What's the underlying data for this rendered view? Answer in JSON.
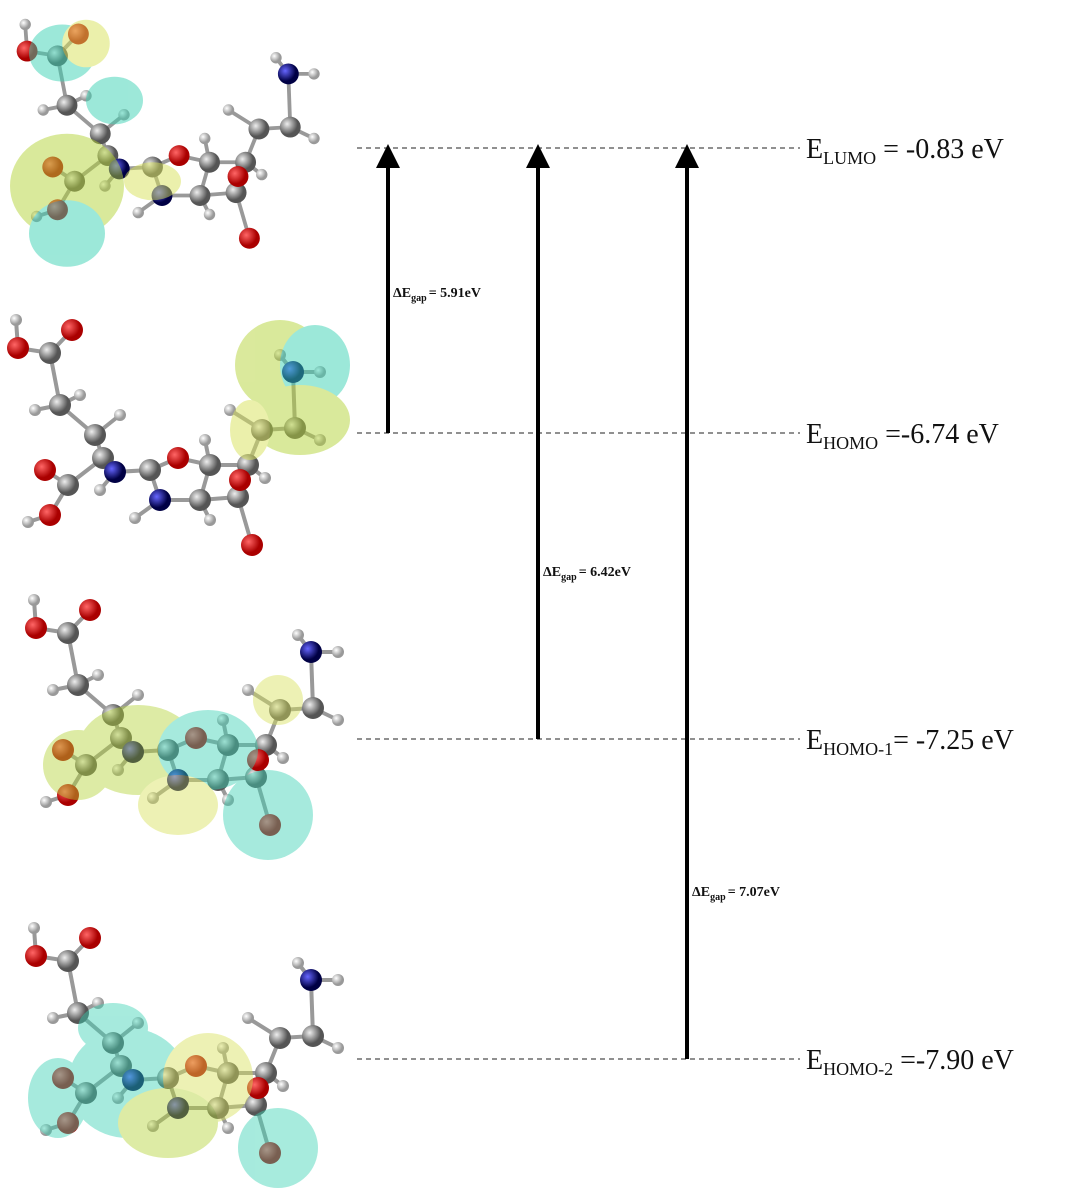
{
  "levels": [
    {
      "symbol": "E",
      "subscript": "LUMO",
      "value": " = -0.83 eV"
    },
    {
      "symbol": "E",
      "subscript": "HOMO",
      "value": " =-6.74 eV"
    },
    {
      "symbol": "E",
      "subscript": "HOMO-1",
      "value": "=  -7.25 eV"
    },
    {
      "symbol": "E",
      "subscript": "HOMO-2",
      "value": " =-7.90 eV"
    }
  ],
  "gaps": [
    {
      "symbol": "ΔE",
      "subscript": "gap",
      "value": "= 5.91eV"
    },
    {
      "symbol": "ΔE",
      "subscript": "gap",
      "value": "= 6.42eV"
    },
    {
      "symbol": "ΔE",
      "subscript": "gap",
      "value": "= 7.07eV"
    }
  ]
}
